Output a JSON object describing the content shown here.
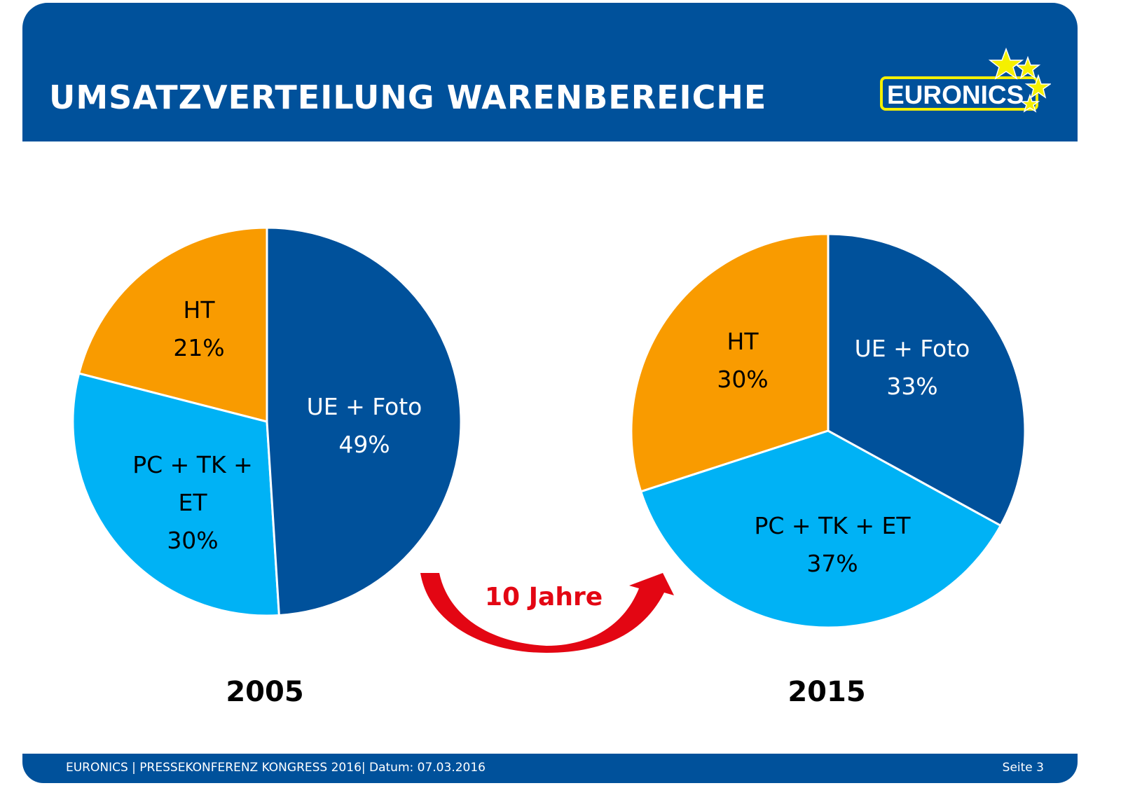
{
  "header": {
    "title": "UMSATZVERTEILUNG WARENBEREICHE",
    "logo_text": "EURONICS"
  },
  "chart_data": [
    {
      "type": "pie",
      "title": "2005",
      "slices": [
        {
          "label": "UE + Foto",
          "value": 49,
          "display": "49%",
          "color": "#00519b",
          "text_color": "#ffffff"
        },
        {
          "label": "PC + TK + ET",
          "value": 30,
          "display": "30%",
          "color": "#00b2f5",
          "text_color": "#000000"
        },
        {
          "label": "HT",
          "value": 21,
          "display": "21%",
          "color": "#f99b00",
          "text_color": "#000000"
        }
      ]
    },
    {
      "type": "pie",
      "title": "2015",
      "slices": [
        {
          "label": "UE + Foto",
          "value": 33,
          "display": "33%",
          "color": "#00519b",
          "text_color": "#ffffff"
        },
        {
          "label": "PC + TK + ET",
          "value": 37,
          "display": "37%",
          "color": "#00b2f5",
          "text_color": "#000000"
        },
        {
          "label": "HT",
          "value": 30,
          "display": "30%",
          "color": "#f99b00",
          "text_color": "#000000"
        }
      ]
    }
  ],
  "arrow": {
    "label": "10 Jahre",
    "color": "#e30613"
  },
  "footer": {
    "left": "EURONICS | PRESSEKONFERENZ KONGRESS 2016| Datum: 07.03.2016",
    "right": "Seite 3"
  }
}
